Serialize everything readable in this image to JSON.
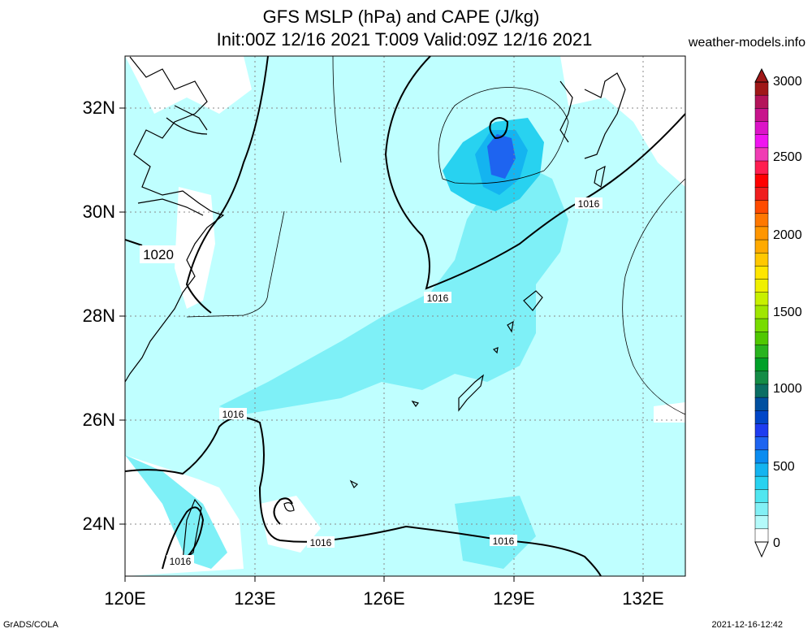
{
  "title_line1": "GFS MSLP (hPa) and CAPE (J/kg)",
  "title_line2": "Init:00Z 12/16 2021 T:009 Valid:09Z 12/16 2021",
  "site": "weather-models.info",
  "footer_left": "GrADS/COLA",
  "footer_right": "2021-12-16-12:42",
  "lat_labels": [
    "32N",
    "30N",
    "28N",
    "26N",
    "24N"
  ],
  "lon_labels": [
    "120E",
    "123E",
    "126E",
    "129E",
    "132E"
  ],
  "isobar_labels": {
    "a": "1020",
    "b": "1016",
    "c": "1016",
    "d": "1016",
    "e": "1016",
    "f": "1016",
    "g": "1016"
  },
  "colorbar": {
    "labels": [
      "3000",
      "2500",
      "2000",
      "1500",
      "1000",
      "500",
      "0"
    ],
    "colors": [
      "#a01818",
      "#b4145a",
      "#c8148c",
      "#dc14c8",
      "#f014f0",
      "#f03cb4",
      "#ff1e50",
      "#ff0000",
      "#f01e1e",
      "#ff4b00",
      "#ff7800",
      "#ff9600",
      "#ffaa00",
      "#ffc800",
      "#ffe600",
      "#f0f000",
      "#c8f000",
      "#a0e600",
      "#78dc00",
      "#50c800",
      "#28b41e",
      "#00a028",
      "#148c46",
      "#0a6e64",
      "#0050a0",
      "#0046c8",
      "#1e3cf0",
      "#1e64f0",
      "#0a8cf0",
      "#14b4f0",
      "#28d2f0",
      "#50e6f0",
      "#82f0f5",
      "#b4fafa",
      "#ffffff"
    ]
  },
  "colors": {
    "cape_low": "#bfffff",
    "cape_mid": "#7ef0f7",
    "cape_high": "#28d2f0",
    "cape_max": "#1e64f0"
  }
}
